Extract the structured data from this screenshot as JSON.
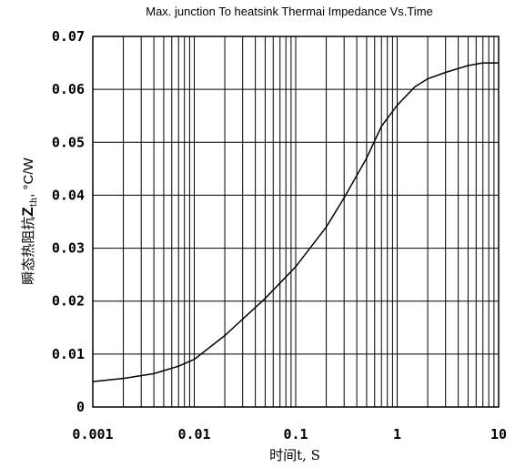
{
  "chart_data": {
    "type": "line",
    "title": "Max. junction To heatsink Thermai Impedance Vs.Time",
    "xlabel": "时间t, S",
    "ylabel": "瞬态热阻抗Zth, °C/W",
    "x_scale": "log",
    "xlim": [
      0.001,
      10
    ],
    "ylim": [
      0,
      0.07
    ],
    "grid": true,
    "x_tick_labels": [
      "0.001",
      "0.01",
      "0.1",
      "1",
      "10"
    ],
    "y_tick_labels": [
      "0",
      "0.01",
      "0.02",
      "0.03",
      "0.04",
      "0.05",
      "0.06",
      "0.07"
    ],
    "series": [
      {
        "x": [
          0.001,
          0.002,
          0.004,
          0.007,
          0.01,
          0.02,
          0.05,
          0.1,
          0.2,
          0.3,
          0.5,
          0.7,
          1,
          1.5,
          2,
          3,
          5,
          7,
          10
        ],
        "y": [
          0.0048,
          0.0054,
          0.0063,
          0.0077,
          0.009,
          0.0135,
          0.0205,
          0.0265,
          0.034,
          0.0395,
          0.047,
          0.053,
          0.057,
          0.0605,
          0.062,
          0.0632,
          0.0645,
          0.065,
          0.065
        ]
      }
    ]
  }
}
